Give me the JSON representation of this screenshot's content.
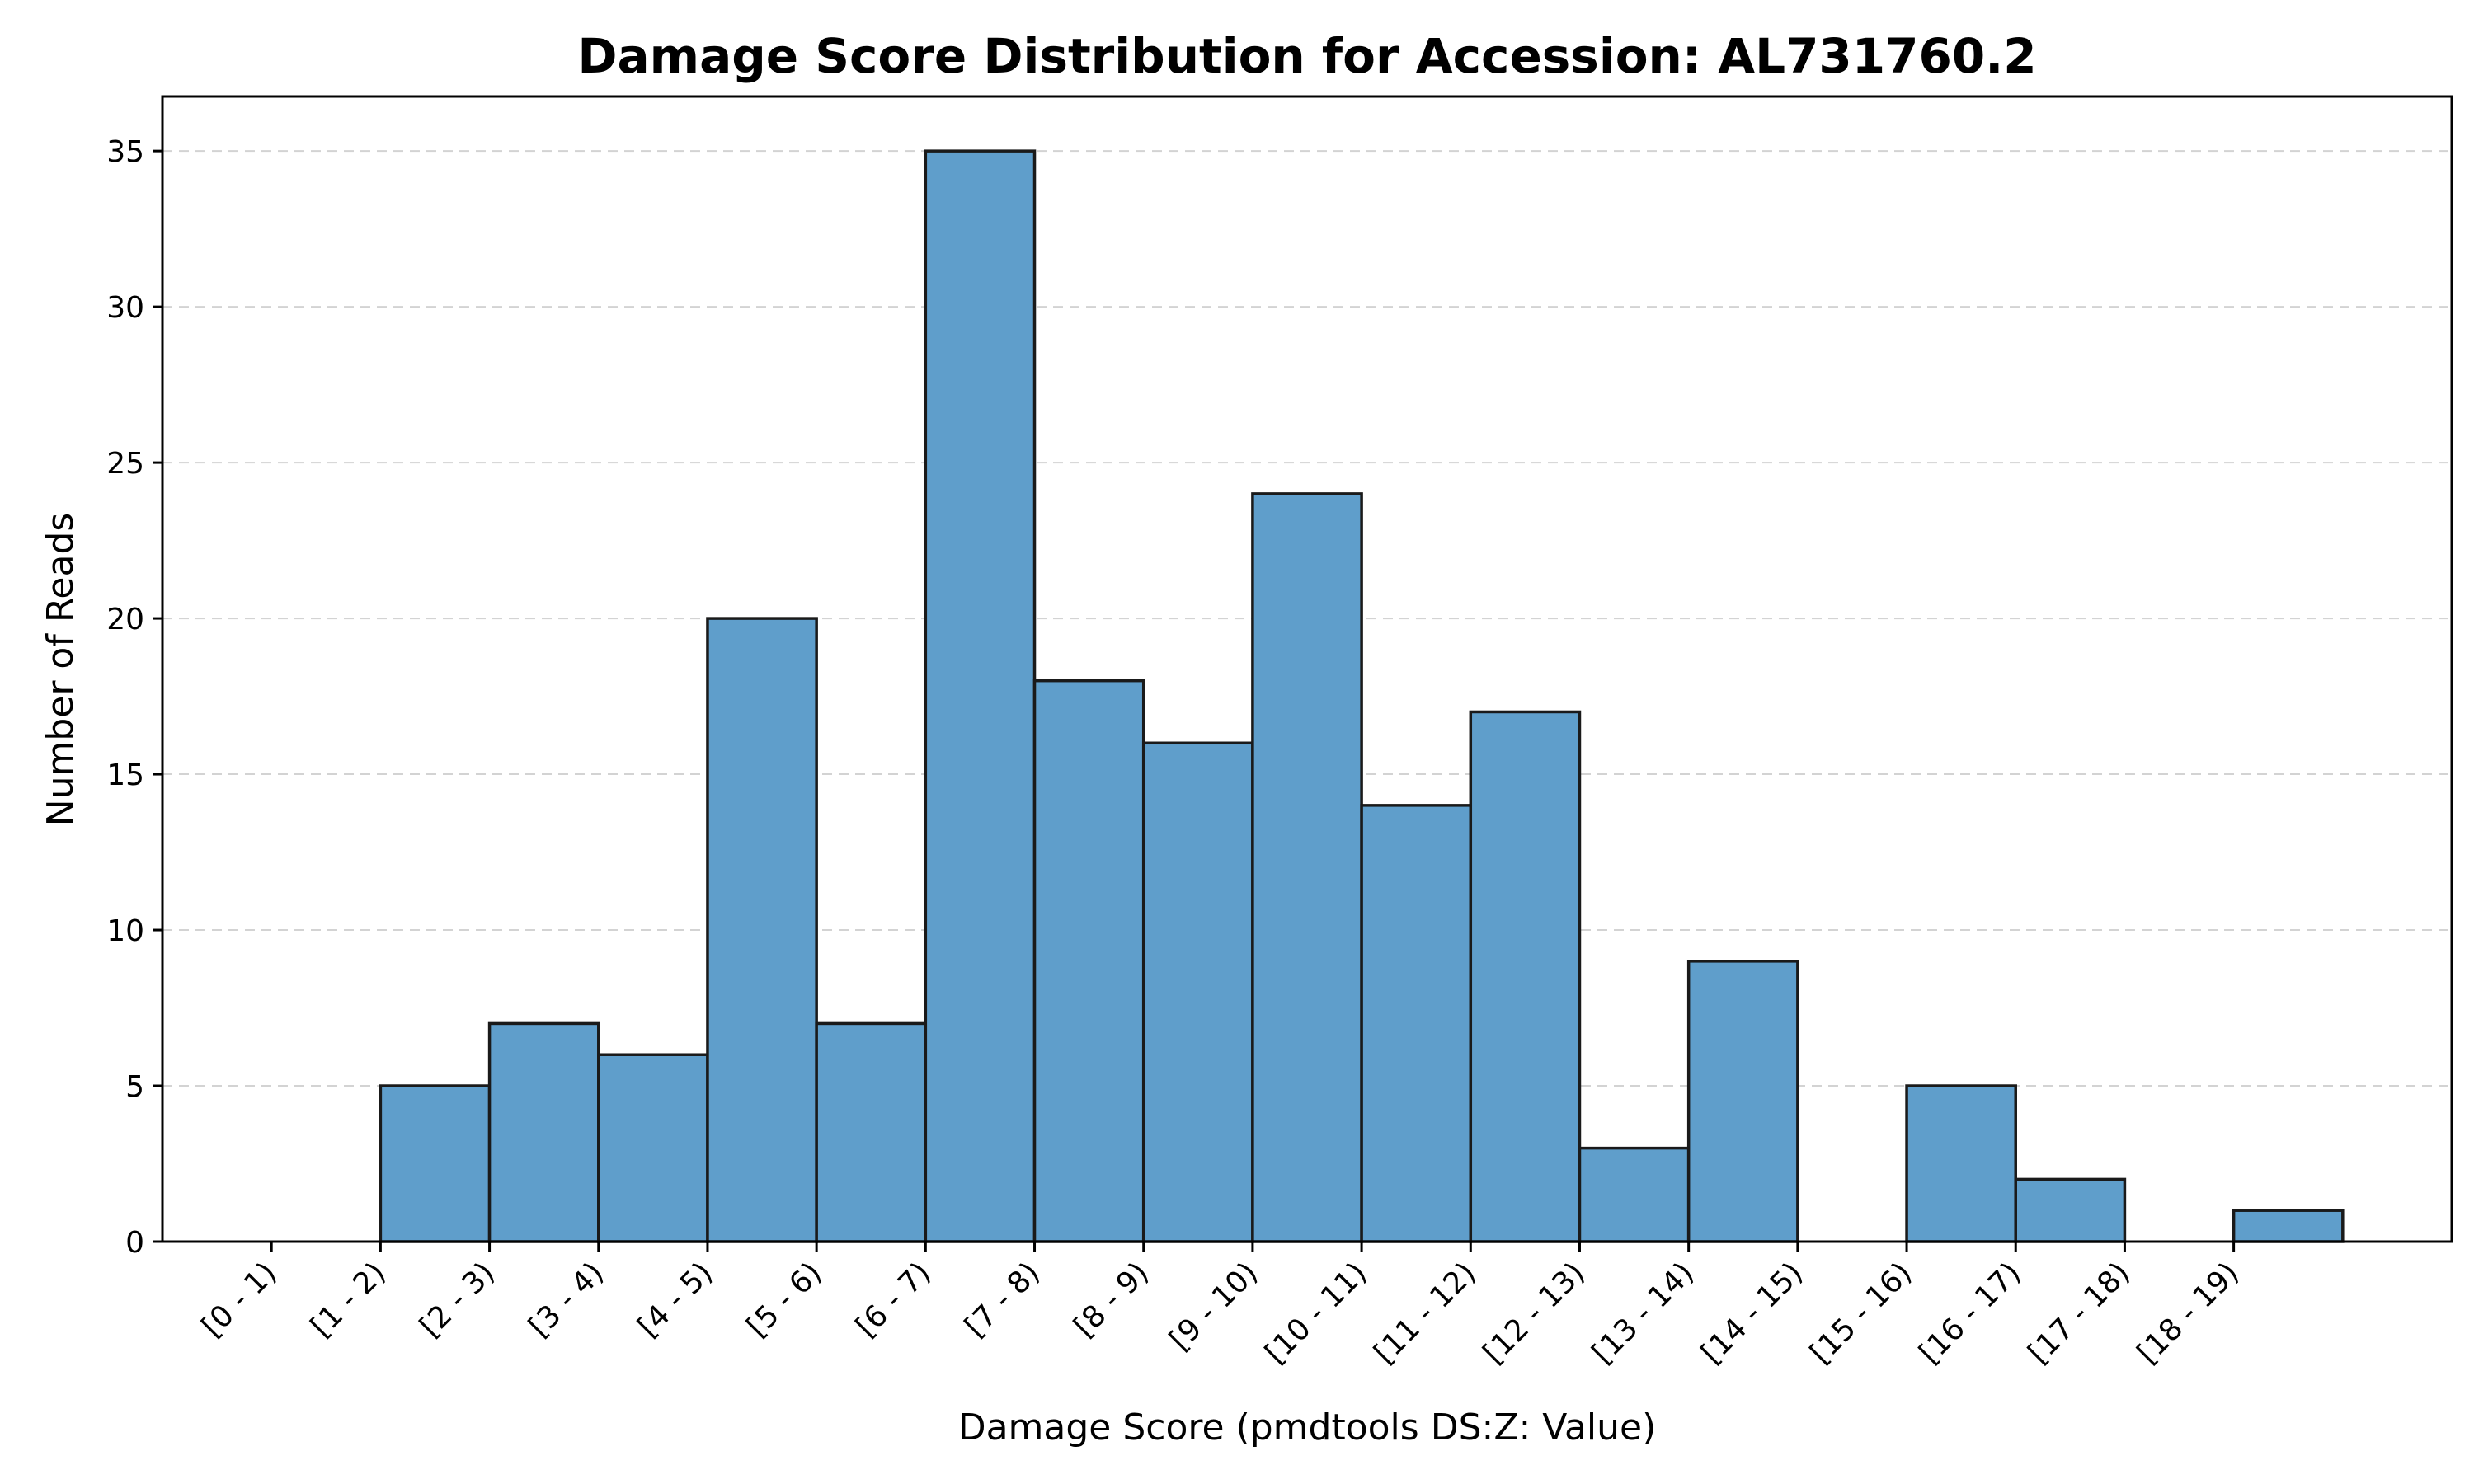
{
  "chart_data": {
    "type": "bar",
    "title": "Damage Score Distribution for Accession: AL731760.2",
    "xlabel": "Damage Score (pmdtools DS:Z: Value)",
    "ylabel": "Number of Reads",
    "categories": [
      "[0 - 1)",
      "[1 - 2)",
      "[2 - 3)",
      "[3 - 4)",
      "[4 - 5)",
      "[5 - 6)",
      "[6 - 7)",
      "[7 - 8)",
      "[8 - 9)",
      "[9 - 10)",
      "[10 - 11)",
      "[11 - 12)",
      "[12 - 13)",
      "[13 - 14)",
      "[14 - 15)",
      "[15 - 16)",
      "[16 - 17)",
      "[17 - 18)",
      "[18 - 19)"
    ],
    "values": [
      0,
      5,
      7,
      6,
      20,
      7,
      35,
      18,
      16,
      24,
      14,
      17,
      3,
      9,
      0,
      5,
      2,
      0,
      1
    ],
    "yticks": [
      "0",
      "5",
      "10",
      "15",
      "20",
      "25",
      "30",
      "35"
    ],
    "ylim": [
      0,
      36.75
    ],
    "xlim": [
      -1,
      20
    ],
    "grid": "y-dashed",
    "bar_color": "#5f9ecb",
    "edge_color": "#1a1a1a"
  }
}
